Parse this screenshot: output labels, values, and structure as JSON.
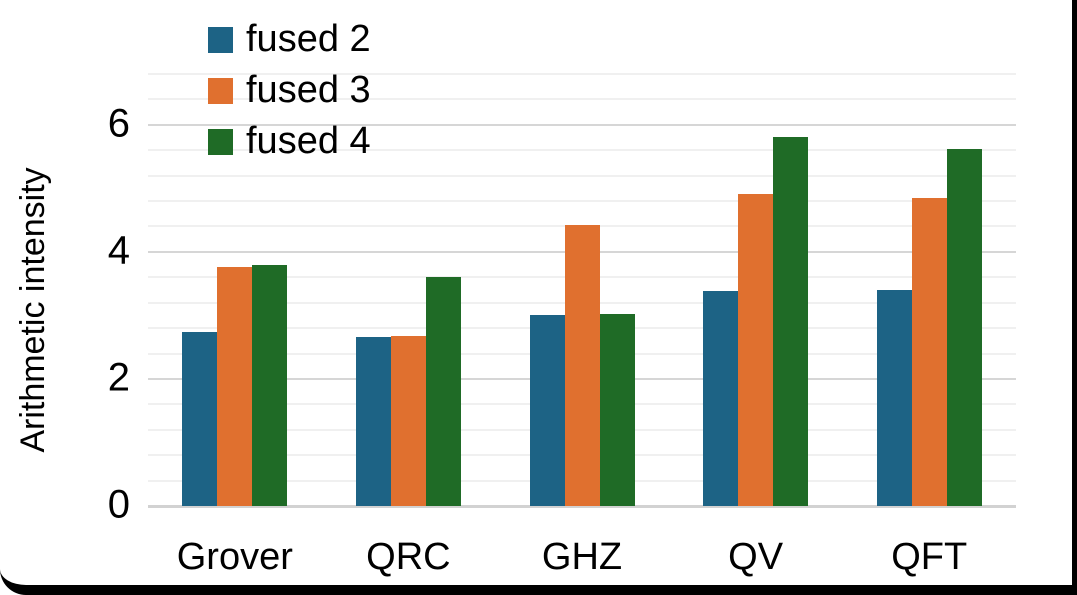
{
  "chart_data": {
    "type": "bar",
    "title": "",
    "categories": [
      "Grover",
      "QRC",
      "GHZ",
      "QV",
      "QFT"
    ],
    "series": [
      {
        "name": "fused 2",
        "color": "#1d6385",
        "values": [
          2.74,
          2.66,
          3.0,
          3.38,
          3.4
        ]
      },
      {
        "name": "fused 3",
        "color": "#e0702f",
        "values": [
          3.76,
          2.68,
          4.42,
          4.91,
          4.85
        ]
      },
      {
        "name": "fused 4",
        "color": "#1f6b26",
        "values": [
          3.8,
          3.6,
          3.03,
          5.81,
          5.62
        ]
      }
    ],
    "xlabel": "",
    "ylabel": "Arithmetic intensity",
    "ylim": [
      0,
      6.8
    ],
    "yticks": [
      0,
      2,
      4,
      6
    ],
    "minor_gridline_step": 0.4,
    "grid": true,
    "legend_position": "top-left"
  },
  "styles": {
    "background": "#ffffff",
    "frame_color": "#000000",
    "minor_gridline_color": "#f0f0f0",
    "major_gridline_color": "#d6d6d6",
    "baseline_color": "#d2d2d2",
    "text_color": "#000000"
  }
}
